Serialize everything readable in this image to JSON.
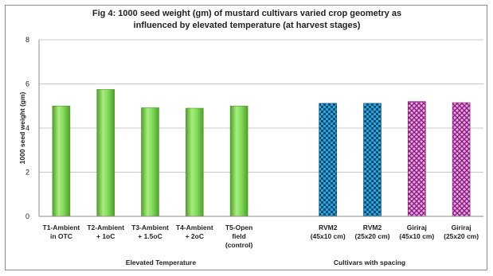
{
  "chart_data": {
    "type": "bar",
    "title_lines": [
      "Fig 4: 1000 seed weight (gm) of mustard cultivars varied crop geometry  as",
      "influenced by elevated temperature (at harvest stages)"
    ],
    "ylabel": "1000 seed weight (gm)",
    "ylim": [
      0,
      8
    ],
    "yticks": [
      "0",
      "2",
      "4",
      "6",
      "8"
    ],
    "grid": true,
    "categories": [
      [
        "T1-Ambient",
        "in OTC"
      ],
      [
        "T2-Ambient",
        "+ 1oC"
      ],
      [
        "T3-Ambient",
        "+ 1.5oC"
      ],
      [
        "T4-Ambient",
        "+ 2oC"
      ],
      [
        "T5-Open",
        "field",
        "(control)"
      ],
      [],
      [
        "RVM2",
        "(45x10 cm)"
      ],
      [
        "RVM2",
        "(25x20 cm)"
      ],
      [
        "Giriraj",
        "(45x10 cm)"
      ],
      [
        "Giriraj",
        "(25x20 cm)"
      ]
    ],
    "values": [
      5.0,
      5.75,
      4.92,
      4.9,
      5.0,
      null,
      5.12,
      5.12,
      5.2,
      5.15
    ],
    "bar_styles": [
      "green",
      "green",
      "green",
      "green",
      "green",
      null,
      "blue",
      "blue",
      "pink",
      "pink"
    ],
    "groups": [
      {
        "label": "Elevated Temperature"
      },
      {
        "label": "Cultivars with spacing"
      }
    ],
    "colors": {
      "green": "#7ed957",
      "green_dark": "#4f9e2c",
      "blue": "#2aa3d8",
      "blue_dark": "#0b4f78",
      "pink": "#b43aa6",
      "pink_light": "#e9a6e2",
      "grid": "#c8c8c8",
      "axis": "#8c8c8c"
    }
  }
}
